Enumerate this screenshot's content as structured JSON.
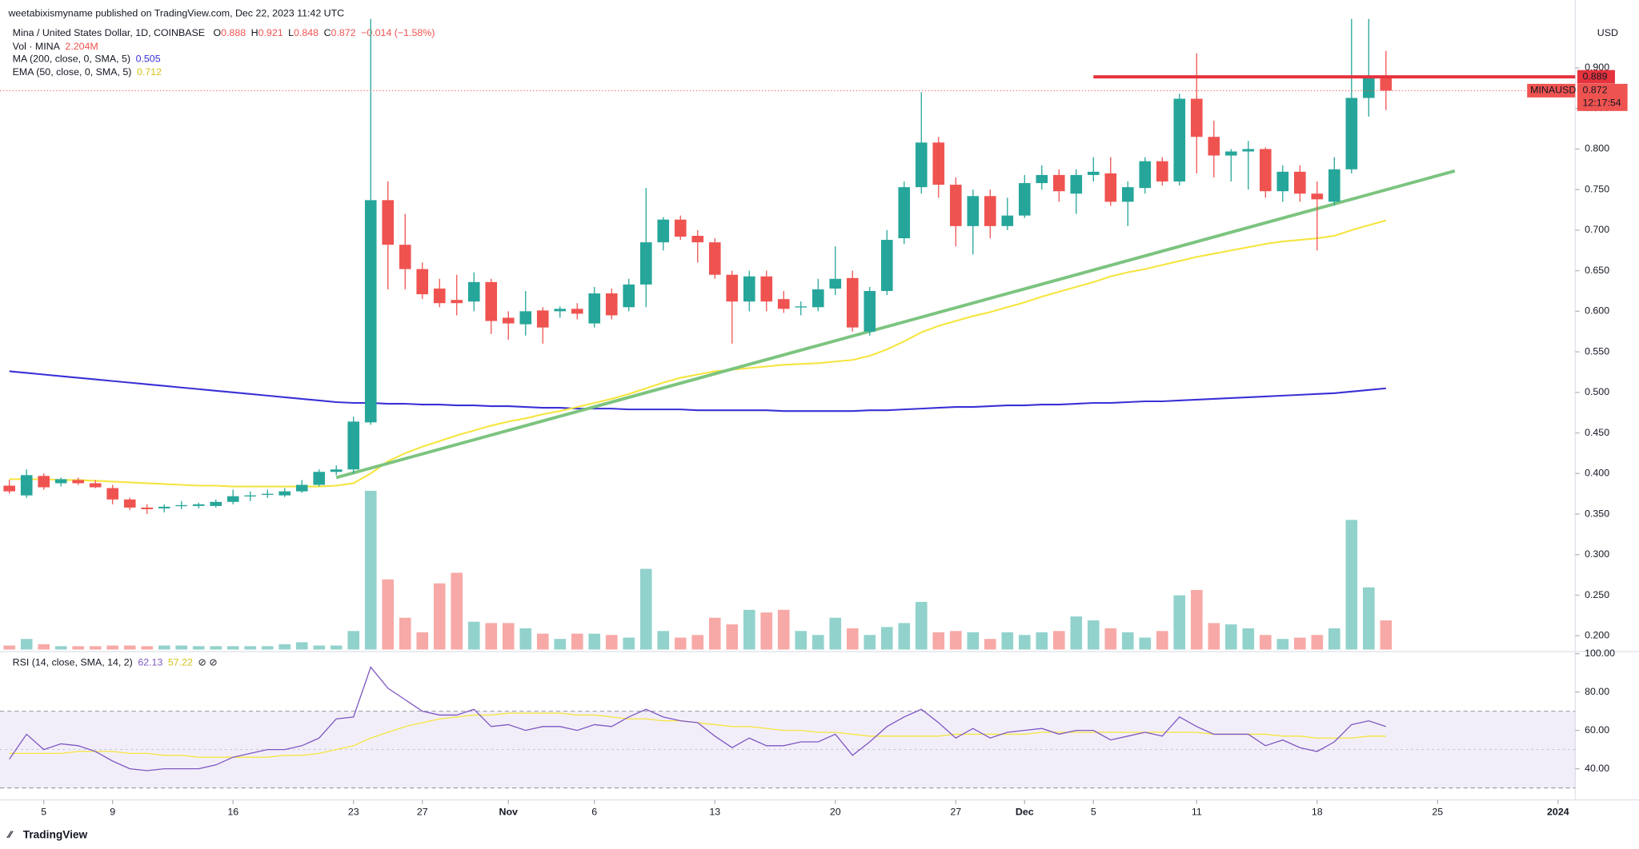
{
  "header": {
    "publisher": "weetabixismyname published on TradingView.com, Dec 22, 2023 11:42 UTC",
    "symbol": "Mina / United States Dollar, 1D, COINBASE",
    "ohlc": [
      {
        "label": "O",
        "value": "0.888"
      },
      {
        "label": "H",
        "value": "0.921"
      },
      {
        "label": "L",
        "value": "0.848"
      },
      {
        "label": "C",
        "value": "0.872"
      }
    ],
    "change": "−0.014 (−1.58%)",
    "branding": "TradingView"
  },
  "chart_data": {
    "type": "candlestick",
    "x": [
      "2023-10-03",
      "2023-10-04",
      "2023-10-05",
      "2023-10-06",
      "2023-10-07",
      "2023-10-08",
      "2023-10-09",
      "2023-10-10",
      "2023-10-11",
      "2023-10-12",
      "2023-10-13",
      "2023-10-14",
      "2023-10-15",
      "2023-10-16",
      "2023-10-17",
      "2023-10-18",
      "2023-10-19",
      "2023-10-20",
      "2023-10-21",
      "2023-10-22",
      "2023-10-23",
      "2023-10-24",
      "2023-10-25",
      "2023-10-26",
      "2023-10-27",
      "2023-10-28",
      "2023-10-29",
      "2023-10-30",
      "2023-10-31",
      "2023-11-01",
      "2023-11-02",
      "2023-11-03",
      "2023-11-04",
      "2023-11-05",
      "2023-11-06",
      "2023-11-07",
      "2023-11-08",
      "2023-11-09",
      "2023-11-10",
      "2023-11-11",
      "2023-11-12",
      "2023-11-13",
      "2023-11-14",
      "2023-11-15",
      "2023-11-16",
      "2023-11-17",
      "2023-11-18",
      "2023-11-19",
      "2023-11-20",
      "2023-11-21",
      "2023-11-22",
      "2023-11-23",
      "2023-11-24",
      "2023-11-25",
      "2023-11-26",
      "2023-11-27",
      "2023-11-28",
      "2023-11-29",
      "2023-11-30",
      "2023-12-01",
      "2023-12-02",
      "2023-12-03",
      "2023-12-04",
      "2023-12-05",
      "2023-12-06",
      "2023-12-07",
      "2023-12-08",
      "2023-12-09",
      "2023-12-10",
      "2023-12-11",
      "2023-12-12",
      "2023-12-13",
      "2023-12-14",
      "2023-12-15",
      "2023-12-16",
      "2023-12-17",
      "2023-12-18",
      "2023-12-19",
      "2023-12-20",
      "2023-12-21",
      "2023-12-22"
    ],
    "series": [
      {
        "name": "MINAUSD",
        "up_color": "#26a69a",
        "down_color": "#ef5350",
        "open": [
          0.385,
          0.373,
          0.397,
          0.388,
          0.392,
          0.388,
          0.382,
          0.368,
          0.358,
          0.357,
          0.36,
          0.36,
          0.36,
          0.365,
          0.372,
          0.374,
          0.373,
          0.378,
          0.386,
          0.402,
          0.405,
          0.463,
          0.737,
          0.682,
          0.652,
          0.628,
          0.614,
          0.612,
          0.636,
          0.592,
          0.584,
          0.601,
          0.6,
          0.603,
          0.585,
          0.622,
          0.605,
          0.633,
          0.685,
          0.713,
          0.693,
          0.685,
          0.645,
          0.612,
          0.643,
          0.615,
          0.605,
          0.605,
          0.628,
          0.641,
          0.575,
          0.625,
          0.69,
          0.753,
          0.808,
          0.756,
          0.705,
          0.742,
          0.705,
          0.718,
          0.758,
          0.768,
          0.745,
          0.768,
          0.77,
          0.735,
          0.752,
          0.785,
          0.76,
          0.862,
          0.815,
          0.792,
          0.797,
          0.8,
          0.748,
          0.772,
          0.745,
          0.735,
          0.775,
          0.863,
          0.888
        ],
        "high": [
          0.392,
          0.405,
          0.4,
          0.395,
          0.395,
          0.392,
          0.386,
          0.37,
          0.362,
          0.362,
          0.366,
          0.364,
          0.368,
          0.38,
          0.378,
          0.38,
          0.382,
          0.392,
          0.405,
          0.41,
          0.47,
          0.98,
          0.76,
          0.72,
          0.66,
          0.64,
          0.645,
          0.648,
          0.64,
          0.6,
          0.625,
          0.605,
          0.606,
          0.61,
          0.63,
          0.628,
          0.64,
          0.752,
          0.716,
          0.718,
          0.7,
          0.69,
          0.65,
          0.65,
          0.65,
          0.625,
          0.612,
          0.64,
          0.68,
          0.65,
          0.63,
          0.7,
          0.76,
          0.87,
          0.815,
          0.765,
          0.75,
          0.75,
          0.74,
          0.768,
          0.78,
          0.775,
          0.775,
          0.79,
          0.79,
          0.76,
          0.79,
          0.79,
          0.868,
          0.918,
          0.835,
          0.8,
          0.81,
          0.802,
          0.78,
          0.78,
          0.76,
          0.79,
          0.98,
          0.98,
          0.921
        ],
        "low": [
          0.375,
          0.37,
          0.38,
          0.384,
          0.386,
          0.382,
          0.362,
          0.355,
          0.35,
          0.352,
          0.356,
          0.357,
          0.358,
          0.362,
          0.366,
          0.37,
          0.371,
          0.376,
          0.384,
          0.398,
          0.4,
          0.46,
          0.627,
          0.627,
          0.615,
          0.605,
          0.595,
          0.6,
          0.572,
          0.565,
          0.57,
          0.56,
          0.592,
          0.59,
          0.58,
          0.59,
          0.6,
          0.605,
          0.675,
          0.688,
          0.66,
          0.64,
          0.56,
          0.6,
          0.6,
          0.598,
          0.595,
          0.6,
          0.62,
          0.575,
          0.57,
          0.62,
          0.683,
          0.745,
          0.74,
          0.68,
          0.67,
          0.69,
          0.7,
          0.715,
          0.75,
          0.735,
          0.72,
          0.76,
          0.73,
          0.705,
          0.745,
          0.755,
          0.755,
          0.77,
          0.765,
          0.76,
          0.75,
          0.74,
          0.735,
          0.735,
          0.675,
          0.73,
          0.77,
          0.84,
          0.848
        ],
        "close": [
          0.378,
          0.398,
          0.383,
          0.393,
          0.388,
          0.383,
          0.368,
          0.358,
          0.356,
          0.359,
          0.361,
          0.362,
          0.365,
          0.372,
          0.373,
          0.375,
          0.378,
          0.386,
          0.402,
          0.405,
          0.464,
          0.737,
          0.682,
          0.652,
          0.621,
          0.61,
          0.61,
          0.636,
          0.588,
          0.585,
          0.6,
          0.58,
          0.603,
          0.597,
          0.622,
          0.595,
          0.633,
          0.685,
          0.713,
          0.692,
          0.685,
          0.645,
          0.612,
          0.643,
          0.612,
          0.603,
          0.606,
          0.627,
          0.64,
          0.58,
          0.625,
          0.688,
          0.753,
          0.808,
          0.756,
          0.705,
          0.742,
          0.705,
          0.718,
          0.758,
          0.768,
          0.748,
          0.768,
          0.772,
          0.735,
          0.753,
          0.785,
          0.76,
          0.862,
          0.815,
          0.792,
          0.797,
          0.8,
          0.748,
          0.772,
          0.745,
          0.738,
          0.775,
          0.863,
          0.888,
          0.872
        ]
      }
    ],
    "volume": {
      "name": "Vol · MINA",
      "label": "2.204M",
      "ylim": [
        0,
        15
      ],
      "up_color": "rgba(38,166,154,0.5)",
      "down_color": "rgba(239,83,80,0.5)",
      "values": [
        0.3,
        0.8,
        0.4,
        0.25,
        0.25,
        0.25,
        0.3,
        0.3,
        0.25,
        0.3,
        0.3,
        0.25,
        0.25,
        0.25,
        0.25,
        0.25,
        0.4,
        0.55,
        0.3,
        0.3,
        1.4,
        12.0,
        5.3,
        2.4,
        1.3,
        5.0,
        5.8,
        2.1,
        2.0,
        2.0,
        1.6,
        1.2,
        0.8,
        1.2,
        1.2,
        1.1,
        0.9,
        6.1,
        1.4,
        0.9,
        1.1,
        2.4,
        1.9,
        3.0,
        2.8,
        3.0,
        1.4,
        1.1,
        2.4,
        1.6,
        1.1,
        1.7,
        2.0,
        3.6,
        1.3,
        1.4,
        1.3,
        0.8,
        1.3,
        1.1,
        1.3,
        1.4,
        2.5,
        2.2,
        1.6,
        1.3,
        0.9,
        1.4,
        4.1,
        4.5,
        2.0,
        1.9,
        1.6,
        1.1,
        0.8,
        0.9,
        1.1,
        1.6,
        9.8,
        4.7,
        2.2
      ]
    },
    "overlays": [
      {
        "name": "MA (200, close, 0, SMA, 5)",
        "label": "0.505",
        "color": "#3a30d6",
        "values": [
          0.526,
          0.524,
          0.522,
          0.52,
          0.518,
          0.516,
          0.514,
          0.512,
          0.51,
          0.508,
          0.506,
          0.504,
          0.502,
          0.5,
          0.498,
          0.496,
          0.494,
          0.492,
          0.49,
          0.488,
          0.487,
          0.487,
          0.486,
          0.486,
          0.485,
          0.485,
          0.484,
          0.484,
          0.483,
          0.483,
          0.482,
          0.481,
          0.481,
          0.48,
          0.48,
          0.48,
          0.479,
          0.479,
          0.479,
          0.479,
          0.478,
          0.478,
          0.478,
          0.478,
          0.478,
          0.477,
          0.477,
          0.477,
          0.477,
          0.477,
          0.478,
          0.478,
          0.479,
          0.48,
          0.481,
          0.482,
          0.482,
          0.483,
          0.484,
          0.484,
          0.485,
          0.485,
          0.486,
          0.487,
          0.487,
          0.488,
          0.489,
          0.489,
          0.49,
          0.491,
          0.492,
          0.493,
          0.494,
          0.495,
          0.496,
          0.497,
          0.498,
          0.499,
          0.501,
          0.503,
          0.505
        ]
      },
      {
        "name": "EMA (50, close, 0, SMA, 5)",
        "label": "0.712",
        "color": "#f5e53f",
        "values": [
          0.393,
          0.393,
          0.393,
          0.392,
          0.392,
          0.391,
          0.39,
          0.389,
          0.388,
          0.387,
          0.386,
          0.385,
          0.385,
          0.384,
          0.384,
          0.384,
          0.384,
          0.384,
          0.384,
          0.385,
          0.388,
          0.4,
          0.415,
          0.425,
          0.433,
          0.44,
          0.447,
          0.453,
          0.459,
          0.464,
          0.468,
          0.473,
          0.477,
          0.482,
          0.487,
          0.492,
          0.498,
          0.505,
          0.512,
          0.518,
          0.522,
          0.526,
          0.528,
          0.53,
          0.532,
          0.534,
          0.535,
          0.536,
          0.538,
          0.54,
          0.545,
          0.553,
          0.563,
          0.574,
          0.582,
          0.588,
          0.594,
          0.599,
          0.605,
          0.611,
          0.618,
          0.624,
          0.63,
          0.636,
          0.643,
          0.648,
          0.652,
          0.657,
          0.662,
          0.667,
          0.671,
          0.675,
          0.679,
          0.683,
          0.686,
          0.688,
          0.69,
          0.693,
          0.7,
          0.706,
          0.712
        ]
      }
    ],
    "trend_line": {
      "color": "#7cc47f",
      "x": [
        "2023-10-22",
        "2023-12-26"
      ],
      "values": [
        0.395,
        0.773
      ]
    },
    "horizontal_line": {
      "color": "#e5323d",
      "x": "2023-12-05",
      "value": 0.889
    },
    "current_price": {
      "name": "MINAUSD",
      "countdown": "12:17:54",
      "color": "#ef5350"
    },
    "axis_label": "USD",
    "xlim": [
      "2023-10-02",
      "2024-01-02"
    ],
    "xticks": [
      {
        "value": "2023-10-05",
        "label": "5"
      },
      {
        "value": "2023-10-09",
        "label": "9"
      },
      {
        "value": "2023-10-16",
        "label": "16"
      },
      {
        "value": "2023-10-23",
        "label": "23"
      },
      {
        "value": "2023-10-27",
        "label": "27"
      },
      {
        "value": "2023-11-01",
        "label": "Nov"
      },
      {
        "value": "2023-11-06",
        "label": "6"
      },
      {
        "value": "2023-11-13",
        "label": "13"
      },
      {
        "value": "2023-11-20",
        "label": "20"
      },
      {
        "value": "2023-11-27",
        "label": "27"
      },
      {
        "value": "2023-12-01",
        "label": "Dec"
      },
      {
        "value": "2023-12-05",
        "label": "5"
      },
      {
        "value": "2023-12-11",
        "label": "11"
      },
      {
        "value": "2023-12-18",
        "label": "18"
      },
      {
        "value": "2023-12-25",
        "label": "25"
      },
      {
        "value": "2024-01-01",
        "label": "2024"
      }
    ],
    "ylim": [
      0.183,
      0.9605
    ],
    "yticks": [
      {
        "value": 0.2,
        "label": "0.200"
      },
      {
        "value": 0.25,
        "label": "0.250"
      },
      {
        "value": 0.3,
        "label": "0.300"
      },
      {
        "value": 0.35,
        "label": "0.350"
      },
      {
        "value": 0.4,
        "label": "0.400"
      },
      {
        "value": 0.45,
        "label": "0.450"
      },
      {
        "value": 0.5,
        "label": "0.500"
      },
      {
        "value": 0.55,
        "label": "0.550"
      },
      {
        "value": 0.6,
        "label": "0.600"
      },
      {
        "value": 0.65,
        "label": "0.650"
      },
      {
        "value": 0.7,
        "label": "0.700"
      },
      {
        "value": 0.75,
        "label": "0.750"
      },
      {
        "value": 0.8,
        "label": "0.800"
      },
      {
        "value": 0.85,
        "label": "0.850"
      },
      {
        "value": 0.9,
        "label": "0.900"
      }
    ],
    "grid": false,
    "rsi": {
      "name": "RSI (14, close, SMA, 14, 2)",
      "ylim": [
        24.3,
        100
      ],
      "band": [
        30,
        70
      ],
      "midline": 50,
      "band_color": "rgba(126,87,194,0.1)",
      "yticks": [
        {
          "value": 40,
          "label": "40.00"
        },
        {
          "value": 60,
          "label": "60.00"
        },
        {
          "value": 80,
          "label": "80.00"
        },
        {
          "value": 100,
          "label": "100.00"
        }
      ],
      "series": [
        {
          "label": "62.13",
          "color": "#7e57c2",
          "values": [
            45,
            58,
            50,
            53,
            52,
            49,
            44,
            40,
            39,
            40,
            40,
            40,
            42,
            46,
            48,
            50,
            50,
            52,
            56,
            66,
            67,
            93,
            82,
            76,
            70,
            68,
            68,
            71,
            62,
            63,
            60,
            62,
            62,
            60,
            63,
            62,
            67,
            71,
            67,
            65,
            64,
            57,
            51,
            56,
            52,
            52,
            54,
            54,
            58,
            47,
            54,
            62,
            67,
            71,
            64,
            56,
            61,
            56,
            59,
            60,
            61,
            58,
            60,
            60,
            55,
            57,
            59,
            57,
            67,
            62,
            58,
            58,
            58,
            52,
            55,
            51,
            49,
            54,
            63,
            65,
            62
          ]
        },
        {
          "label": "57.22",
          "color": "#f5e53f",
          "values": [
            48,
            48,
            48,
            48,
            49,
            49,
            49,
            48,
            48,
            47,
            47,
            46,
            46,
            46,
            46,
            46,
            47,
            47,
            48,
            50,
            52,
            56,
            59,
            62,
            64,
            66,
            67,
            68,
            68,
            69,
            69,
            69,
            69,
            68,
            68,
            67,
            66,
            66,
            65,
            65,
            64,
            63,
            62,
            62,
            61,
            60,
            60,
            59,
            59,
            58,
            57,
            57,
            57,
            57,
            57,
            58,
            58,
            58,
            58,
            58,
            59,
            59,
            59,
            59,
            59,
            59,
            59,
            59,
            59,
            59,
            58,
            58,
            58,
            58,
            57,
            57,
            56,
            56,
            56,
            57,
            57
          ]
        }
      ]
    }
  }
}
